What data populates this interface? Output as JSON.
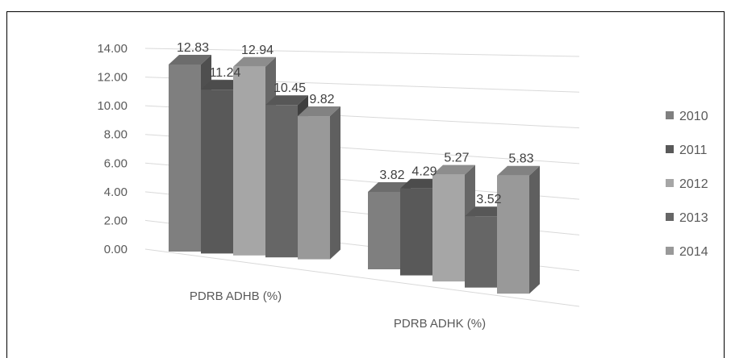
{
  "chart_data": {
    "type": "bar",
    "style": "3d-clustered-column",
    "categories": [
      "PDRB ADHB (%)",
      "PDRB ADHK (%)"
    ],
    "series": [
      {
        "name": "2010",
        "values": [
          12.83,
          3.82
        ],
        "color": "#7f7f7f"
      },
      {
        "name": "2011",
        "values": [
          11.24,
          4.29
        ],
        "color": "#595959"
      },
      {
        "name": "2012",
        "values": [
          12.94,
          5.27
        ],
        "color": "#a6a6a6"
      },
      {
        "name": "2013",
        "values": [
          10.45,
          3.52
        ],
        "color": "#666666"
      },
      {
        "name": "2014",
        "values": [
          9.82,
          5.83
        ],
        "color": "#999999"
      }
    ],
    "y_ticks": [
      "0.00",
      "2.00",
      "4.00",
      "6.00",
      "8.00",
      "10.00",
      "12.00",
      "14.00"
    ],
    "ylim": [
      0,
      14
    ],
    "grid": true,
    "legend": "right"
  }
}
